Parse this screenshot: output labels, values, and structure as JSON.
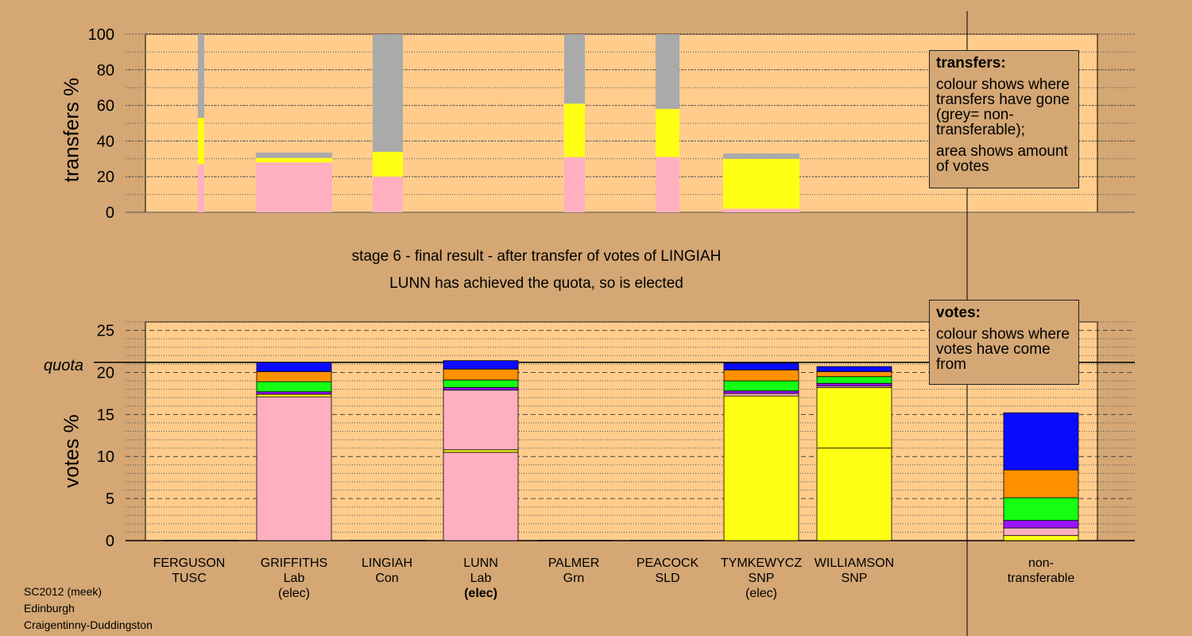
{
  "top_caption_1": "stage 6 - final result - after transfer of votes of LINGIAH",
  "top_caption_2": "LUNN has achieved the quota, so is elected",
  "transfers_legend": {
    "title": "transfers:",
    "line1": "colour shows where transfers have gone (grey= non-transferable);",
    "line2": "area shows amount of votes"
  },
  "votes_legend": {
    "title": "votes:",
    "line1": "colour shows where votes have come from"
  },
  "quota_label": "quota",
  "footer": {
    "line1": "SC2012 (meek)",
    "line2": "Edinburgh",
    "line3": "Craigentinny-Duddingston"
  },
  "candidates": [
    {
      "name": "FERGUSON",
      "party": "TUSC",
      "status": ""
    },
    {
      "name": "GRIFFITHS",
      "party": "Lab",
      "status": "(elec)"
    },
    {
      "name": "LINGIAH",
      "party": "Con",
      "status": ""
    },
    {
      "name": "LUNN",
      "party": "Lab",
      "status": "(elec)"
    },
    {
      "name": "PALMER",
      "party": "Grn",
      "status": ""
    },
    {
      "name": "PEACOCK",
      "party": "SLD",
      "status": ""
    },
    {
      "name": "TYMKEWYCZ",
      "party": "SNP",
      "status": "(elec)"
    },
    {
      "name": "WILLIAMSON",
      "party": "SNP",
      "status": ""
    }
  ],
  "nontransferable_label": "non-\ntransferable",
  "colors": {
    "background": "#d4a774",
    "plot_bg": "#ffcc8c",
    "Lab": "#ffb0c0",
    "SNP": "#ffff14",
    "Con": "#0a0aff",
    "SLD": "#ff9000",
    "Grn": "#14ff14",
    "TUSC": "#9a14ff",
    "grey": "#aaaaaa"
  },
  "chart_data": [
    {
      "type": "bar",
      "ylabel": "transfers %",
      "ylim": [
        0,
        100
      ],
      "yticks": [
        0,
        20,
        40,
        60,
        80,
        100
      ],
      "grid": true,
      "legend_position": "right",
      "columns": [
        {
          "source": "FERGUSON",
          "segments": [
            {
              "to": "Lab",
              "value": 27
            },
            {
              "to": "SNP",
              "value": 26
            },
            {
              "to": "grey",
              "value": 47
            }
          ]
        },
        {
          "source": "GRIFFITHS",
          "segments": [
            {
              "to": "Lab",
              "value": 28
            },
            {
              "to": "SNP",
              "value": 2.5
            },
            {
              "to": "grey",
              "value": 3
            }
          ]
        },
        {
          "source": "LINGIAH",
          "segments": [
            {
              "to": "Lab",
              "value": 20
            },
            {
              "to": "SNP",
              "value": 14
            },
            {
              "to": "grey",
              "value": 66
            }
          ]
        },
        {
          "source": "PALMER",
          "segments": [
            {
              "to": "Lab",
              "value": 31
            },
            {
              "to": "SNP",
              "value": 30
            },
            {
              "to": "grey",
              "value": 39
            }
          ]
        },
        {
          "source": "PEACOCK",
          "segments": [
            {
              "to": "Lab",
              "value": 31
            },
            {
              "to": "SNP",
              "value": 27
            },
            {
              "to": "grey",
              "value": 42
            }
          ]
        },
        {
          "source": "TYMKEWYCZ",
          "segments": [
            {
              "to": "Lab",
              "value": 2
            },
            {
              "to": "SNP",
              "value": 28
            },
            {
              "to": "grey",
              "value": 3
            }
          ]
        }
      ]
    },
    {
      "type": "bar",
      "ylabel": "votes %",
      "ylim": [
        0,
        25
      ],
      "yticks": [
        0,
        5,
        10,
        15,
        20,
        25
      ],
      "quota": 21.2,
      "grid": true,
      "categories": [
        "FERGUSON",
        "GRIFFITHS",
        "LINGIAH",
        "LUNN",
        "PALMER",
        "PEACOCK",
        "TYMKEWYCZ",
        "WILLIAMSON",
        "non-transferable"
      ],
      "stacks": [
        [],
        [
          {
            "from": "Lab",
            "value": 17.1
          },
          {
            "from": "SNP",
            "value": 0.3
          },
          {
            "from": "TUSC",
            "value": 0.3
          },
          {
            "from": "Grn",
            "value": 1.2
          },
          {
            "from": "SLD",
            "value": 1.2
          },
          {
            "from": "Con",
            "value": 1.1
          }
        ],
        [],
        [
          {
            "from": "Lab",
            "value": 10.5
          },
          {
            "from": "SNP",
            "value": 0.3
          },
          {
            "from": "Lab",
            "value": 7.1
          },
          {
            "from": "TUSC",
            "value": 0.3
          },
          {
            "from": "Grn",
            "value": 0.9
          },
          {
            "from": "SLD",
            "value": 1.3
          },
          {
            "from": "Con",
            "value": 1.0
          }
        ],
        [],
        [],
        [
          {
            "from": "SNP",
            "value": 17.2
          },
          {
            "from": "Lab",
            "value": 0.3
          },
          {
            "from": "TUSC",
            "value": 0.3
          },
          {
            "from": "Grn",
            "value": 1.2
          },
          {
            "from": "SLD",
            "value": 1.3
          },
          {
            "from": "Con",
            "value": 0.8
          }
        ],
        [
          {
            "from": "SNP",
            "value": 11.0
          },
          {
            "from": "SNP",
            "value": 7.2
          },
          {
            "from": "Lab",
            "value": 0.2
          },
          {
            "from": "TUSC",
            "value": 0.3
          },
          {
            "from": "Grn",
            "value": 0.8
          },
          {
            "from": "SLD",
            "value": 0.6
          },
          {
            "from": "Con",
            "value": 0.6
          }
        ],
        [
          {
            "from": "SNP",
            "value": 0.6
          },
          {
            "from": "Lab",
            "value": 0.9
          },
          {
            "from": "TUSC",
            "value": 0.9
          },
          {
            "from": "Grn",
            "value": 2.7
          },
          {
            "from": "SLD",
            "value": 3.3
          },
          {
            "from": "Con",
            "value": 6.8
          }
        ]
      ]
    }
  ]
}
